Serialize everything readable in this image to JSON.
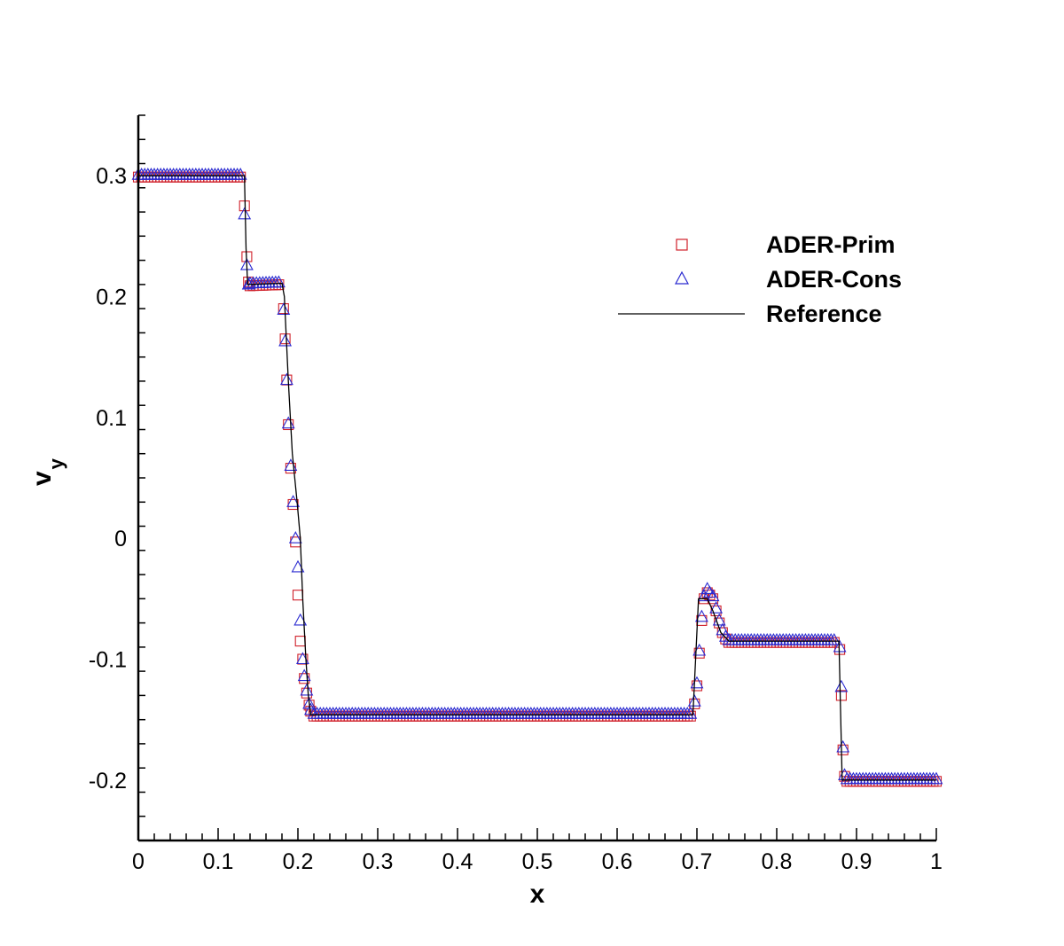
{
  "chart_data": {
    "type": "scatter",
    "title": "",
    "xlabel": "x",
    "ylabel_main": "v",
    "ylabel_sub": "y",
    "xlim": [
      0,
      1
    ],
    "ylim": [
      -0.25,
      0.35
    ],
    "grid": false,
    "legend_position": "top-right",
    "x_ticks": [
      0,
      0.1,
      0.2,
      0.3,
      0.4,
      0.5,
      0.6,
      0.7,
      0.8,
      0.9,
      1
    ],
    "x_tick_labels": [
      "0",
      "0.1",
      "0.2",
      "0.3",
      "0.4",
      "0.5",
      "0.6",
      "0.7",
      "0.8",
      "0.9",
      "1"
    ],
    "y_ticks": [
      -0.2,
      -0.1,
      0,
      0.1,
      0.2,
      0.3
    ],
    "y_tick_labels": [
      "-0.2",
      "-0.1",
      "0",
      "0.1",
      "0.2",
      "0.3"
    ],
    "reference_profile": [
      [
        0.0,
        0.3
      ],
      [
        0.133,
        0.3
      ],
      [
        0.135,
        0.24
      ],
      [
        0.137,
        0.21
      ],
      [
        0.18,
        0.211
      ],
      [
        0.183,
        0.2
      ],
      [
        0.188,
        0.13
      ],
      [
        0.193,
        0.07
      ],
      [
        0.199,
        0.03
      ],
      [
        0.203,
        0.0
      ],
      [
        0.206,
        -0.05
      ],
      [
        0.21,
        -0.1
      ],
      [
        0.213,
        -0.13
      ],
      [
        0.216,
        -0.146
      ],
      [
        0.695,
        -0.146
      ],
      [
        0.702,
        -0.05
      ],
      [
        0.713,
        -0.05
      ],
      [
        0.72,
        -0.06
      ],
      [
        0.73,
        -0.078
      ],
      [
        0.74,
        -0.085
      ],
      [
        0.878,
        -0.085
      ],
      [
        0.882,
        -0.2
      ],
      [
        1.0,
        -0.2
      ]
    ],
    "series": [
      {
        "name": "ADER-Prim",
        "marker": "square",
        "color": "#d0202a",
        "extra_points": [
          [
            0.133,
            0.275
          ],
          [
            0.136,
            0.233
          ],
          [
            0.138,
            0.212
          ],
          [
            0.182,
            0.19
          ],
          [
            0.184,
            0.165
          ],
          [
            0.186,
            0.131
          ],
          [
            0.188,
            0.094
          ],
          [
            0.191,
            0.058
          ],
          [
            0.194,
            0.028
          ],
          [
            0.197,
            -0.003
          ],
          [
            0.2,
            -0.047
          ],
          [
            0.203,
            -0.085
          ],
          [
            0.206,
            -0.1
          ],
          [
            0.208,
            -0.116
          ],
          [
            0.211,
            -0.128
          ],
          [
            0.214,
            -0.138
          ],
          [
            0.216,
            -0.143
          ],
          [
            0.697,
            -0.137
          ],
          [
            0.7,
            -0.122
          ],
          [
            0.703,
            -0.095
          ],
          [
            0.706,
            -0.068
          ],
          [
            0.709,
            -0.05
          ],
          [
            0.713,
            -0.045
          ],
          [
            0.716,
            -0.047
          ],
          [
            0.72,
            -0.05
          ],
          [
            0.724,
            -0.06
          ],
          [
            0.728,
            -0.07
          ],
          [
            0.732,
            -0.078
          ],
          [
            0.879,
            -0.092
          ],
          [
            0.881,
            -0.13
          ],
          [
            0.883,
            -0.175
          ],
          [
            0.885,
            -0.197
          ]
        ]
      },
      {
        "name": "ADER-Cons",
        "marker": "triangle",
        "color": "#2a2ad0",
        "extra_points": [
          [
            0.133,
            0.268
          ],
          [
            0.136,
            0.226
          ],
          [
            0.138,
            0.21
          ],
          [
            0.182,
            0.189
          ],
          [
            0.184,
            0.163
          ],
          [
            0.186,
            0.131
          ],
          [
            0.188,
            0.095
          ],
          [
            0.191,
            0.06
          ],
          [
            0.194,
            0.03
          ],
          [
            0.197,
            0.0
          ],
          [
            0.2,
            -0.024
          ],
          [
            0.203,
            -0.068
          ],
          [
            0.206,
            -0.1
          ],
          [
            0.208,
            -0.114
          ],
          [
            0.211,
            -0.126
          ],
          [
            0.214,
            -0.137
          ],
          [
            0.216,
            -0.142
          ],
          [
            0.697,
            -0.135
          ],
          [
            0.7,
            -0.12
          ],
          [
            0.703,
            -0.093
          ],
          [
            0.706,
            -0.065
          ],
          [
            0.709,
            -0.048
          ],
          [
            0.713,
            -0.042
          ],
          [
            0.716,
            -0.045
          ],
          [
            0.72,
            -0.048
          ],
          [
            0.724,
            -0.058
          ],
          [
            0.728,
            -0.068
          ],
          [
            0.732,
            -0.076
          ],
          [
            0.879,
            -0.09
          ],
          [
            0.881,
            -0.123
          ],
          [
            0.883,
            -0.173
          ],
          [
            0.885,
            -0.196
          ]
        ]
      },
      {
        "name": "Reference",
        "marker": "line",
        "color": "#000000"
      }
    ]
  }
}
